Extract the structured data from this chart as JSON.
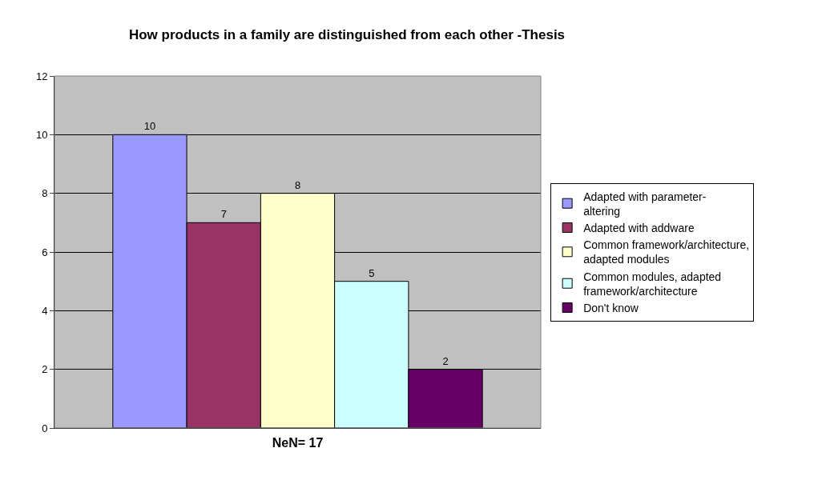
{
  "chart_data": {
    "type": "bar",
    "title": "How products in a family are distinguished from each other -Thesis",
    "xlabel": "NeN= 17",
    "categories": [
      null
    ],
    "series": [
      {
        "name": "Adapted with parameter-altering",
        "color": "#9999ff",
        "values": [
          10
        ]
      },
      {
        "name": "Adapted with addware",
        "color": "#993366",
        "values": [
          7
        ]
      },
      {
        "name": "Common framework/architecture, adapted modules",
        "color": "#ffffcc",
        "values": [
          8
        ]
      },
      {
        "name": "Common modules, adapted framework/architecture",
        "color": "#ccffff",
        "values": [
          5
        ]
      },
      {
        "name": "Don't know",
        "color": "#660066",
        "values": [
          2
        ]
      }
    ],
    "ylim": [
      0,
      12
    ],
    "yticks": [
      0,
      2,
      4,
      6,
      8,
      10,
      12
    ],
    "grid": "y",
    "legend": "right",
    "data_labels": true
  }
}
